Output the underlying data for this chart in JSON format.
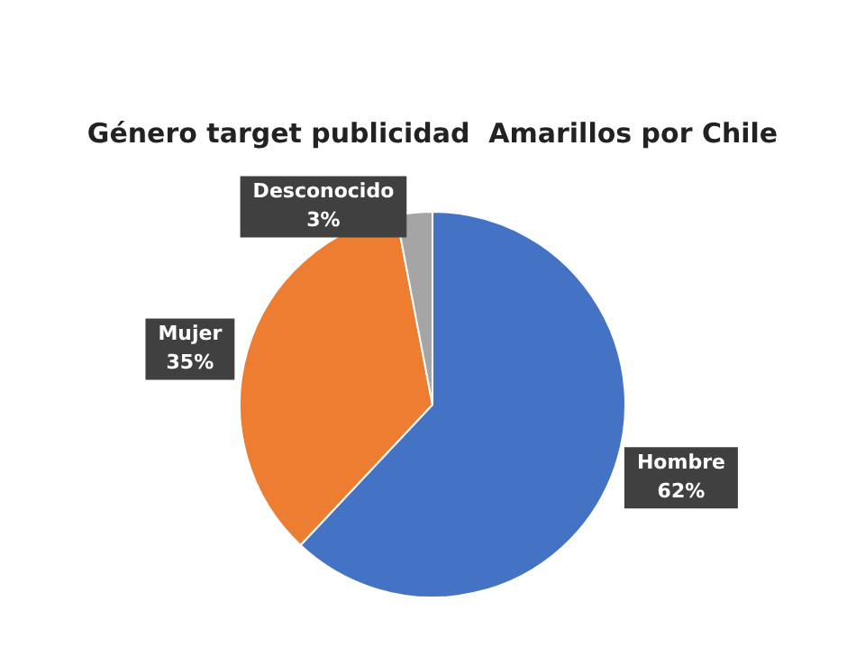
{
  "chart_data": {
    "type": "pie",
    "title": "Género target publicidad  Amarillos por Chile",
    "categories": [
      "Hombre",
      "Mujer",
      "Desconocido"
    ],
    "values": [
      62,
      35,
      3
    ],
    "value_labels": [
      "62%",
      "35%",
      "3%"
    ],
    "colors": [
      "#4472c4",
      "#ed7d31",
      "#a5a5a5"
    ],
    "legend": false
  }
}
